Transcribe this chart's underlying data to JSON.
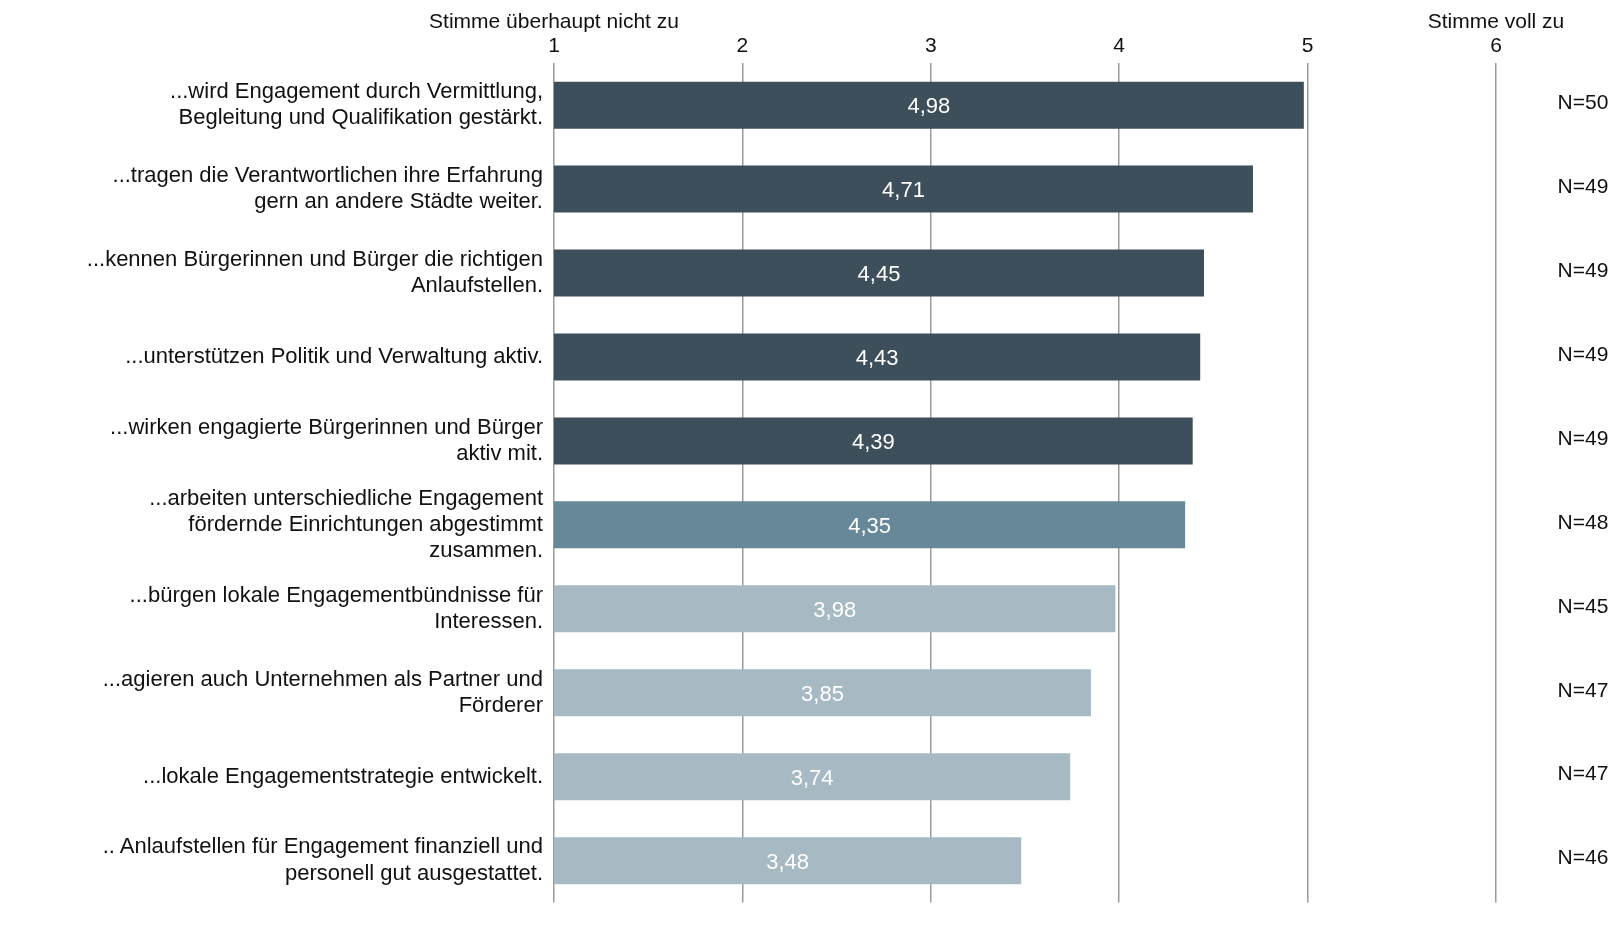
{
  "chart_data": {
    "type": "bar",
    "orientation": "horizontal",
    "categories": [
      "...wird Engagement durch Vermittlung, Begleitung und Qualifikation gestärkt.",
      "...tragen die Verantwortlichen ihre Erfahrung gern an andere Städte weiter.",
      "...kennen Bürgerinnen und Bürger die richtigen Anlaufstellen.",
      "...unterstützen Politik und Verwaltung aktiv.",
      "...wirken engagierte Bürgerinnen und Bürger aktiv mit.",
      "...arbeiten unterschiedliche Engagement fördernde Einrichtungen abgestimmt zusammen.",
      "...bürgen lokale Engagementbündnisse für Interessen.",
      "...agieren auch Unternehmen als Partner und Förderer",
      "...lokale Engagementstrategie entwickelt.",
      ".. Anlaufstellen für Engagement finanziell und personell gut ausgestattet."
    ],
    "values": [
      4.98,
      4.71,
      4.45,
      4.43,
      4.39,
      4.35,
      3.98,
      3.85,
      3.74,
      3.48
    ],
    "value_labels": [
      "4,98",
      "4,71",
      "4,45",
      "4,43",
      "4,39",
      "4,35",
      "3,98",
      "3,85",
      "3,74",
      "3,48"
    ],
    "colors": [
      "#3d4f5a",
      "#3d4f5a",
      "#3d4f5a",
      "#3d4f5a",
      "#3d4f5a",
      "#678898",
      "#a7bac3",
      "#a7bac3",
      "#a7bac3",
      "#a7bac3"
    ],
    "xlim": [
      1,
      6
    ],
    "xticks": [
      1,
      2,
      3,
      4,
      5,
      6
    ],
    "grid": "x",
    "annotations": [
      "Stimme überhaupt nicht zu",
      "Stimme voll zu",
      "N=50",
      "N=49",
      "N=49",
      "N=49",
      "N=49",
      "N=48",
      "N=45",
      "N=47",
      "N=47",
      "N=46"
    ]
  }
}
